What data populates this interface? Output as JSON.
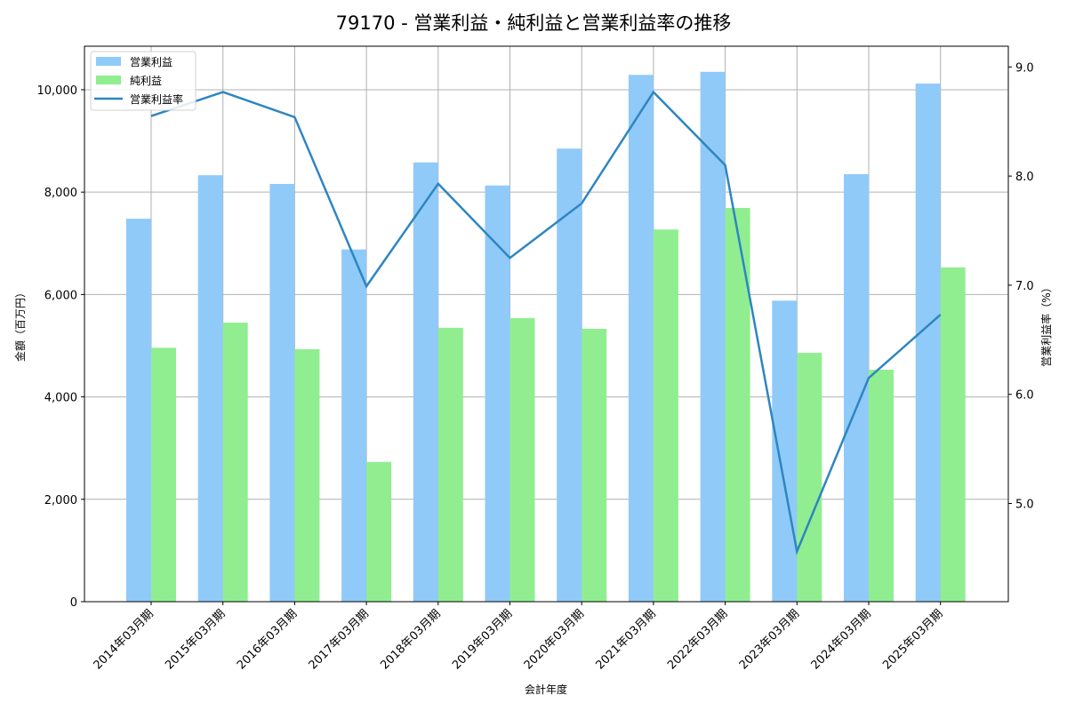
{
  "chart_data": {
    "type": "bar",
    "title": "79170 - 営業利益・純利益と営業利益率の推移",
    "xlabel": "会計年度",
    "ylabel": "金額（百万円）",
    "y2label": "営業利益率（%）",
    "categories": [
      "2014年03月期",
      "2015年03月期",
      "2016年03月期",
      "2017年03月期",
      "2018年03月期",
      "2019年03月期",
      "2020年03月期",
      "2021年03月期",
      "2022年03月期",
      "2023年03月期",
      "2024年03月期",
      "2025年03月期"
    ],
    "series": [
      {
        "name": "営業利益",
        "type": "bar",
        "axis": "left",
        "color": "#90caf9",
        "values": [
          7480,
          8330,
          8160,
          6880,
          8580,
          8130,
          8850,
          10290,
          10350,
          5880,
          8350,
          10120
        ]
      },
      {
        "name": "純利益",
        "type": "bar",
        "axis": "left",
        "color": "#90ee90",
        "values": [
          4960,
          5450,
          4930,
          2730,
          5350,
          5540,
          5330,
          7270,
          7690,
          4860,
          4530,
          6530
        ]
      },
      {
        "name": "営業利益率",
        "type": "line",
        "axis": "right",
        "color": "#2e86c1",
        "values": [
          8.55,
          8.77,
          8.54,
          6.99,
          7.93,
          7.25,
          7.75,
          8.77,
          8.1,
          4.56,
          6.15,
          6.73
        ]
      }
    ],
    "ylim": [
      0,
      10850
    ],
    "y2lim": [
      4.1,
      9.19
    ],
    "yticks": [
      0,
      2000,
      4000,
      6000,
      8000,
      10000
    ],
    "ytick_labels": [
      "0",
      "2,000",
      "4,000",
      "6,000",
      "8,000",
      "10,000"
    ],
    "y2ticks": [
      5.0,
      6.0,
      7.0,
      8.0,
      9.0
    ],
    "y2tick_labels": [
      "5.0",
      "6.0",
      "7.0",
      "8.0",
      "9.0"
    ],
    "grid": true,
    "legend_position": "upper left"
  }
}
